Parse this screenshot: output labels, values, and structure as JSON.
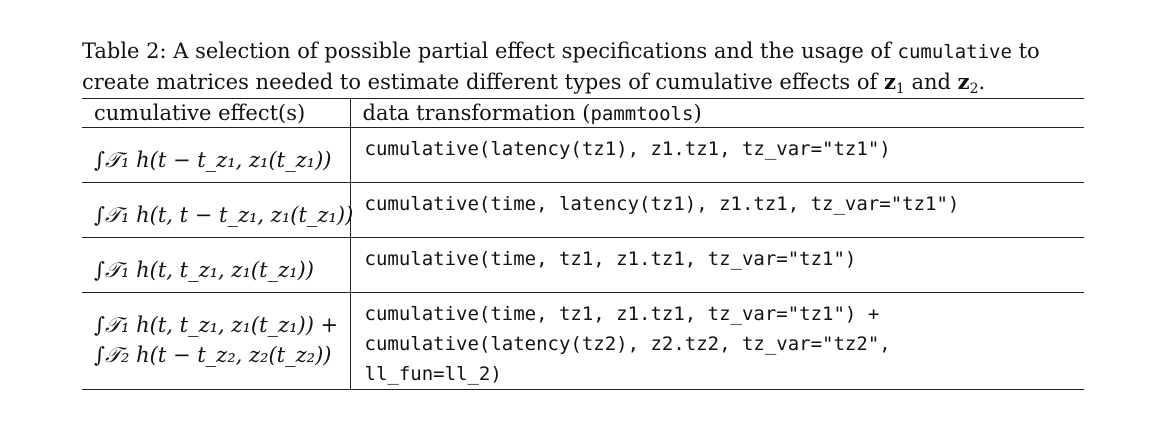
{
  "caption": {
    "line1_prefix": "Table 2: A selection of possible partial effect specifications and the usage of ",
    "line1_code": "cumulative",
    "line1_suffix": " to",
    "line2_text": "create matrices needed to estimate different types of cumulative effects of ",
    "var1": "z",
    "var1_sub": "1",
    "and_text": " and ",
    "var2": "z",
    "var2_sub": "2",
    "end": "."
  },
  "table": {
    "header": {
      "col1": "cumulative effect(s)",
      "col2_prefix": "data transformation (",
      "col2_code": "pammtools",
      "col2_suffix": ")"
    },
    "rows": [
      {
        "effect": [
          "∫𝒯₁ h(t − t_z₁, z₁(t_z₁))"
        ],
        "code": [
          "cumulative(latency(tz1), z1.tz1, tz_var=\"tz1\")"
        ]
      },
      {
        "effect": [
          "∫𝒯₁ h(t, t − t_z₁, z₁(t_z₁))"
        ],
        "code": [
          "cumulative(time, latency(tz1), z1.tz1, tz_var=\"tz1\")"
        ]
      },
      {
        "effect": [
          "∫𝒯₁ h(t, t_z₁, z₁(t_z₁))"
        ],
        "code": [
          "cumulative(time, tz1, z1.tz1, tz_var=\"tz1\")"
        ]
      },
      {
        "effect": [
          "∫𝒯₁ h(t, t_z₁, z₁(t_z₁)) +",
          "∫𝒯₂ h(t − t_z₂, z₂(t_z₂))"
        ],
        "code": [
          "cumulative(time, tz1, z1.tz1, tz_var=\"tz1\") +",
          "cumulative(latency(tz2), z2.tz2, tz_var=\"tz2\",",
          "ll_fun=ll_2)"
        ]
      }
    ]
  }
}
